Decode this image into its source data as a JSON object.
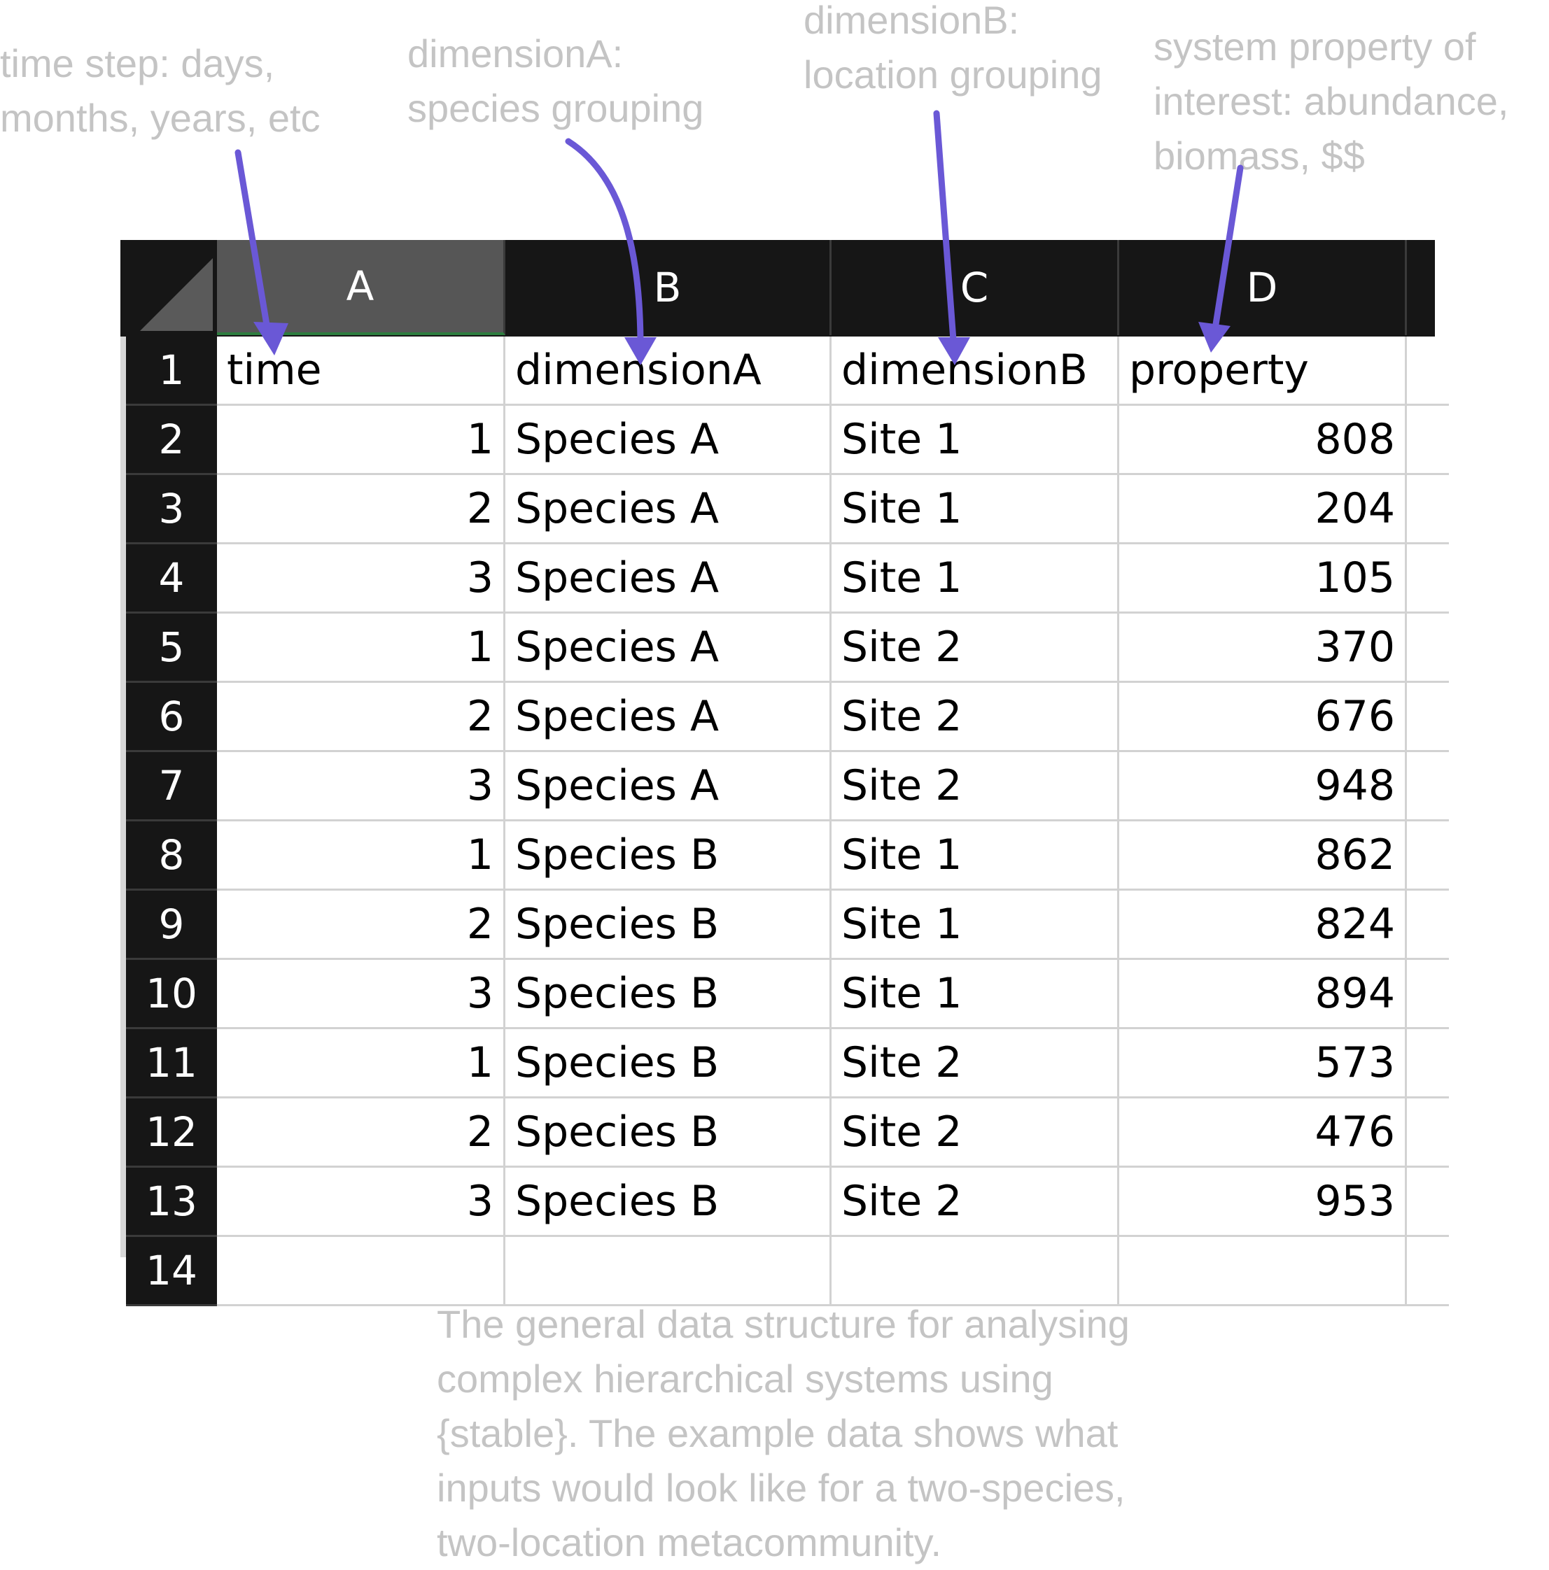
{
  "annotations": {
    "time": [
      "time step: days,",
      "months, years, etc"
    ],
    "dimensionA": [
      "dimensionA:",
      "species grouping"
    ],
    "dimensionB": [
      "dimensionB:",
      "location grouping"
    ],
    "property": [
      "system property of",
      "interest: abundance,",
      "biomass, $$"
    ]
  },
  "caption": [
    "The general data structure for analysing",
    "complex hierarchical systems using",
    "{stable}. The example data shows what",
    "inputs would look like for a two-species,",
    "two-location metacommunity."
  ],
  "spreadsheet": {
    "column_headers": [
      "A",
      "B",
      "C",
      "D"
    ],
    "selected_column": "A",
    "row_numbers": [
      "1",
      "2",
      "3",
      "4",
      "5",
      "6",
      "7",
      "8",
      "9",
      "10",
      "11",
      "12",
      "13",
      "14"
    ],
    "header_row": [
      "time",
      "dimensionA",
      "dimensionB",
      "property"
    ],
    "rows": [
      [
        "1",
        "Species A",
        "Site 1",
        "808"
      ],
      [
        "2",
        "Species A",
        "Site 1",
        "204"
      ],
      [
        "3",
        "Species A",
        "Site 1",
        "105"
      ],
      [
        "1",
        "Species A",
        "Site 2",
        "370"
      ],
      [
        "2",
        "Species A",
        "Site 2",
        "676"
      ],
      [
        "3",
        "Species A",
        "Site 2",
        "948"
      ],
      [
        "1",
        "Species B",
        "Site 1",
        "862"
      ],
      [
        "2",
        "Species B",
        "Site 1",
        "824"
      ],
      [
        "3",
        "Species B",
        "Site 1",
        "894"
      ],
      [
        "1",
        "Species B",
        "Site 2",
        "573"
      ],
      [
        "2",
        "Species B",
        "Site 2",
        "476"
      ],
      [
        "3",
        "Species B",
        "Site 2",
        "953"
      ]
    ]
  },
  "colors": {
    "arrow": "#6a58d6",
    "annotation_text": "#c4c4c4",
    "header_bg": "#161616",
    "selected_header_bg": "#565656"
  }
}
